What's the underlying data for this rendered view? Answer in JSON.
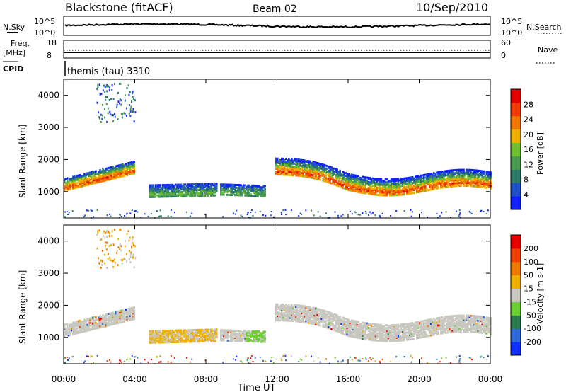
{
  "header": {
    "station": "Blackstone (fitACF)",
    "beam": "Beam 02",
    "date": "10/Sep/2010"
  },
  "top_panels": {
    "nsky_label": "N.Sky",
    "nsearch_label": "N.Search",
    "freq_label_1": "Freq.",
    "freq_label_2": "[MHz]",
    "nave_label": "Nave",
    "cpid_label": "CPID",
    "cpid_text": "themis (tau) 3310",
    "noise_ticks": [
      "10^5",
      "10^0"
    ],
    "freq_ticks": [
      "18",
      "8"
    ],
    "nave_ticks": [
      "60",
      "0"
    ]
  },
  "x_ticks": [
    "00:00",
    "04:00",
    "08:00",
    "12:00",
    "16:00",
    "20:00",
    "00:00"
  ],
  "x_title": "Time UT",
  "colors": {
    "power_scale": [
      "#1020ff",
      "#2050c8",
      "#2e7a6a",
      "#4a9a50",
      "#6cc030",
      "#f0b000",
      "#f07800",
      "#f03c00",
      "#e60000"
    ],
    "velocity_scale": [
      "#1030ff",
      "#2e6ad8",
      "#2a7a50",
      "#6ecf30",
      "#c8c8c0",
      "#f0b000",
      "#f07a00",
      "#f04000",
      "#e60000"
    ],
    "background_gray": "#c8c8c0"
  },
  "chart_data": [
    {
      "type": "heatmap",
      "name": "power",
      "ylabel": "Slant Range [km]",
      "yticks": [
        "1000",
        "2000",
        "3000",
        "4000"
      ],
      "ylim": [
        180,
        4500
      ],
      "xlim_hours": [
        0,
        24
      ],
      "colorbar_label": "Power [dB]",
      "colorbar_ticks": [
        "4",
        "8",
        "12",
        "16",
        "20",
        "24",
        "28"
      ],
      "colorbar_range": [
        0,
        32
      ],
      "echo_regions": [
        {
          "t0": 0.0,
          "t1": 4.0,
          "range_center_start": 1200,
          "range_center_end": 1750,
          "thickness_km": 400,
          "peak_db": 28
        },
        {
          "t0": 4.8,
          "t1": 8.6,
          "range_center_start": 1000,
          "range_center_end": 1050,
          "thickness_km": 400,
          "peak_db": 14
        },
        {
          "t0": 8.8,
          "t1": 11.3,
          "range_center_start": 1050,
          "range_center_end": 1000,
          "thickness_km": 350,
          "peak_db": 14
        },
        {
          "t0": 11.9,
          "t1": 24.0,
          "range_center_start": 1750,
          "range_center_end": 1250,
          "thickness_km": 500,
          "peak_db": 28
        }
      ]
    },
    {
      "type": "heatmap",
      "name": "velocity",
      "ylabel": "Slant Range [km]",
      "yticks": [
        "1000",
        "2000",
        "3000",
        "4000"
      ],
      "ylim": [
        180,
        4500
      ],
      "xlim_hours": [
        0,
        24
      ],
      "colorbar_label": "Velocity [m s-1]",
      "colorbar_ticks": [
        "200",
        "100",
        "50",
        "15",
        "-15",
        "-50",
        "-100",
        "-200"
      ],
      "colorbar_range": [
        -250,
        250
      ]
    }
  ]
}
